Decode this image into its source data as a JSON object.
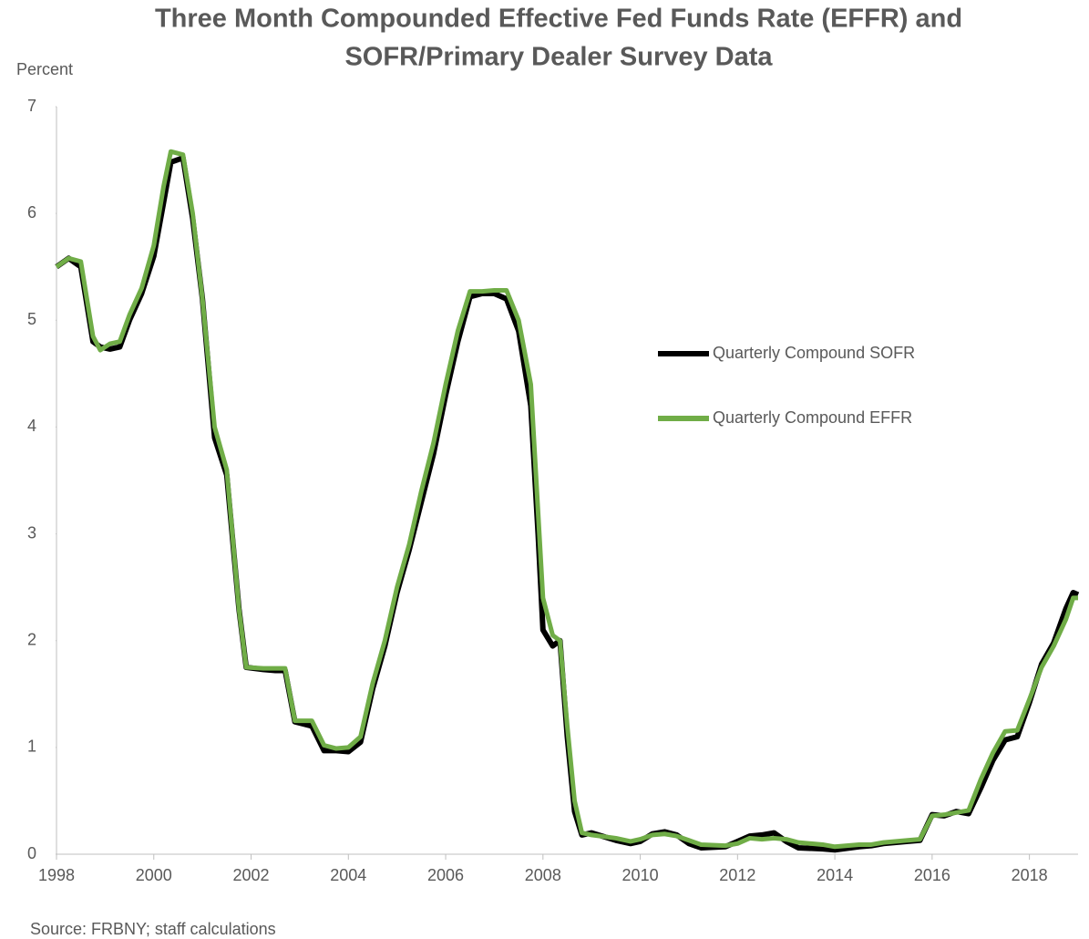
{
  "chart_data": {
    "type": "line",
    "title": [
      "Three Month Compounded Effective Fed Funds Rate (EFFR) and",
      "SOFR/Primary Dealer Survey Data"
    ],
    "y_label": "Percent",
    "source": "Source:  FRBNY; staff calculations",
    "x": [
      1998.0,
      1998.25,
      1998.5,
      1998.75,
      1998.9,
      1999.1,
      1999.3,
      1999.5,
      1999.75,
      2000.0,
      2000.2,
      2000.35,
      2000.6,
      2000.8,
      2001.0,
      2001.25,
      2001.5,
      2001.75,
      2001.9,
      2002.25,
      2002.5,
      2002.7,
      2002.9,
      2003.25,
      2003.5,
      2003.75,
      2004.0,
      2004.25,
      2004.5,
      2004.75,
      2005.0,
      2005.25,
      2005.5,
      2005.75,
      2006.0,
      2006.25,
      2006.5,
      2006.75,
      2007.0,
      2007.25,
      2007.5,
      2007.75,
      2007.9,
      2008.0,
      2008.2,
      2008.35,
      2008.5,
      2008.65,
      2008.8,
      2009.0,
      2009.5,
      2009.8,
      2010.0,
      2010.25,
      2010.5,
      2010.75,
      2011.0,
      2011.25,
      2011.75,
      2012.0,
      2012.25,
      2012.5,
      2012.75,
      2013.0,
      2013.25,
      2013.75,
      2014.0,
      2014.5,
      2014.75,
      2015.0,
      2015.5,
      2015.75,
      2016.0,
      2016.25,
      2016.5,
      2016.75,
      2017.0,
      2017.25,
      2017.5,
      2017.75,
      2018.0,
      2018.25,
      2018.5,
      2018.75,
      2018.9,
      2019.0
    ],
    "series": [
      {
        "name": "Quarterly Compound SOFR",
        "color": "#000000",
        "values": [
          5.5,
          5.58,
          5.5,
          4.8,
          4.75,
          4.73,
          4.75,
          5.0,
          5.25,
          5.6,
          6.1,
          6.48,
          6.52,
          5.95,
          5.2,
          3.9,
          3.55,
          2.3,
          1.75,
          1.73,
          1.72,
          1.72,
          1.24,
          1.2,
          0.97,
          0.97,
          0.96,
          1.05,
          1.55,
          1.95,
          2.45,
          2.85,
          3.3,
          3.75,
          4.3,
          4.8,
          5.22,
          5.25,
          5.25,
          5.2,
          4.9,
          4.2,
          3.0,
          2.1,
          1.95,
          2.0,
          1.1,
          0.4,
          0.18,
          0.2,
          0.13,
          0.1,
          0.12,
          0.19,
          0.21,
          0.18,
          0.1,
          0.06,
          0.07,
          0.12,
          0.17,
          0.18,
          0.2,
          0.12,
          0.06,
          0.05,
          0.04,
          0.07,
          0.08,
          0.1,
          0.12,
          0.13,
          0.37,
          0.36,
          0.4,
          0.38,
          0.62,
          0.88,
          1.07,
          1.1,
          1.42,
          1.78,
          1.98,
          2.3,
          2.45,
          2.43
        ]
      },
      {
        "name": "Quarterly Compound EFFR",
        "color": "#70ad47",
        "values": [
          5.5,
          5.58,
          5.55,
          4.85,
          4.72,
          4.78,
          4.8,
          5.05,
          5.3,
          5.7,
          6.25,
          6.58,
          6.55,
          6.0,
          5.2,
          4.0,
          3.6,
          2.3,
          1.75,
          1.74,
          1.74,
          1.74,
          1.25,
          1.25,
          1.02,
          0.99,
          1.0,
          1.1,
          1.6,
          2.0,
          2.5,
          2.9,
          3.4,
          3.85,
          4.4,
          4.9,
          5.27,
          5.27,
          5.28,
          5.28,
          5.0,
          4.4,
          3.2,
          2.4,
          2.05,
          2.0,
          1.2,
          0.5,
          0.2,
          0.18,
          0.15,
          0.12,
          0.14,
          0.18,
          0.19,
          0.17,
          0.13,
          0.09,
          0.08,
          0.1,
          0.15,
          0.14,
          0.15,
          0.14,
          0.11,
          0.09,
          0.07,
          0.09,
          0.09,
          0.11,
          0.13,
          0.14,
          0.36,
          0.37,
          0.39,
          0.41,
          0.7,
          0.95,
          1.15,
          1.16,
          1.45,
          1.75,
          1.95,
          2.2,
          2.4,
          2.4
        ]
      }
    ],
    "xlim": [
      1998,
      2019
    ],
    "xticks": [
      1998,
      2000,
      2002,
      2004,
      2006,
      2008,
      2010,
      2012,
      2014,
      2016,
      2018
    ],
    "ylim": [
      0,
      7
    ],
    "yticks": [
      0,
      1,
      2,
      3,
      4,
      5,
      6,
      7
    ],
    "grid": false
  }
}
